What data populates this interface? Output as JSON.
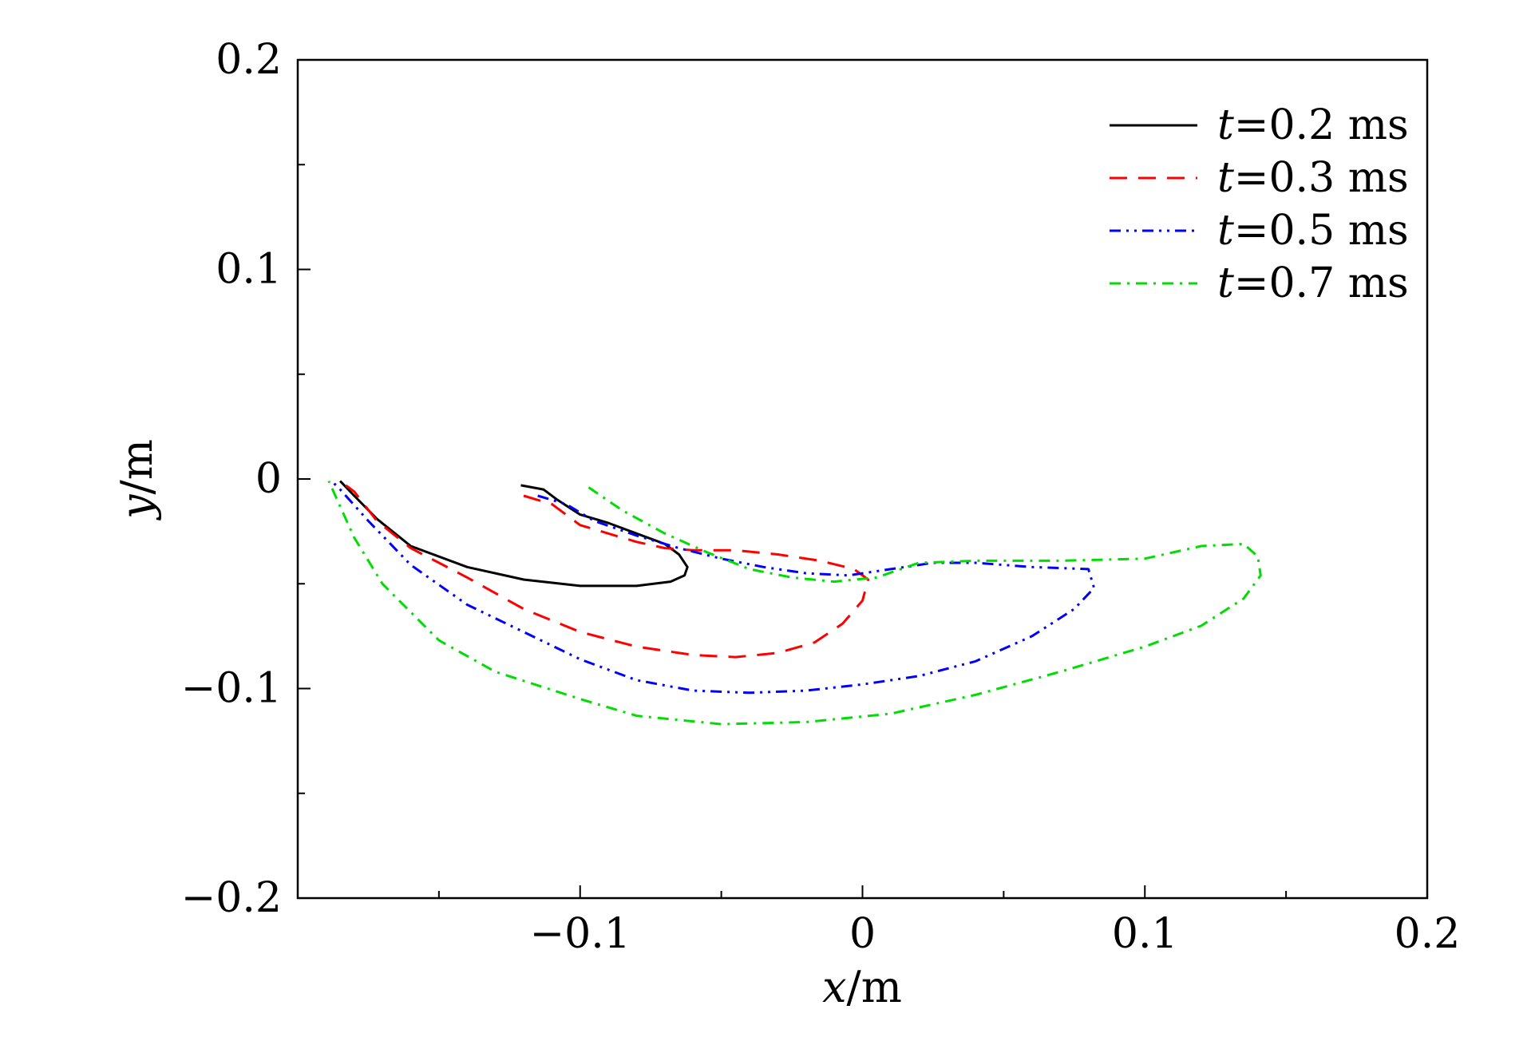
{
  "chart_data": {
    "type": "line",
    "title": "",
    "xlabel": {
      "var": "x",
      "unit": "/m"
    },
    "ylabel": {
      "var": "y",
      "unit": "/m"
    },
    "xlim": [
      -0.2,
      0.2
    ],
    "ylim": [
      -0.2,
      0.2
    ],
    "xticks": [
      {
        "value": -0.1,
        "label": "−0.1"
      },
      {
        "value": 0,
        "label": "0"
      },
      {
        "value": 0.1,
        "label": "0.1"
      },
      {
        "value": 0.2,
        "label": "0.2"
      }
    ],
    "yticks": [
      {
        "value": 0.2,
        "label": "0.2"
      },
      {
        "value": 0.1,
        "label": "0.1"
      },
      {
        "value": 0,
        "label": "0"
      },
      {
        "value": -0.1,
        "label": "−0.1"
      },
      {
        "value": -0.2,
        "label": "−0.2"
      }
    ],
    "x_minor_ticks": [
      -0.15,
      -0.05,
      0.05,
      0.15
    ],
    "y_minor_ticks": [
      0.15,
      0.05,
      -0.05,
      -0.15
    ],
    "grid": false,
    "legend_position": "top-right",
    "series": [
      {
        "name": "t=0.2 ms",
        "legend": {
          "var": "t",
          "text": "=0.2 ms"
        },
        "color": "#000000",
        "dash": "solid",
        "points": [
          [
            -0.121,
            -0.003
          ],
          [
            -0.113,
            -0.005
          ],
          [
            -0.108,
            -0.01
          ],
          [
            -0.1,
            -0.017
          ],
          [
            -0.09,
            -0.021
          ],
          [
            -0.08,
            -0.026
          ],
          [
            -0.07,
            -0.031
          ],
          [
            -0.065,
            -0.036
          ],
          [
            -0.062,
            -0.042
          ],
          [
            -0.063,
            -0.046
          ],
          [
            -0.068,
            -0.049
          ],
          [
            -0.08,
            -0.051
          ],
          [
            -0.1,
            -0.051
          ],
          [
            -0.12,
            -0.048
          ],
          [
            -0.14,
            -0.042
          ],
          [
            -0.16,
            -0.032
          ],
          [
            -0.172,
            -0.019
          ],
          [
            -0.18,
            -0.008
          ],
          [
            -0.185,
            -0.001
          ]
        ]
      },
      {
        "name": "t=0.3 ms",
        "legend": {
          "var": "t",
          "text": "=0.3 ms"
        },
        "color": "#ff0000",
        "dash": "dashed",
        "points": [
          [
            -0.12,
            -0.008
          ],
          [
            -0.11,
            -0.012
          ],
          [
            -0.1,
            -0.022
          ],
          [
            -0.09,
            -0.026
          ],
          [
            -0.08,
            -0.03
          ],
          [
            -0.07,
            -0.033
          ],
          [
            -0.06,
            -0.034
          ],
          [
            -0.045,
            -0.034
          ],
          [
            -0.03,
            -0.036
          ],
          [
            -0.015,
            -0.039
          ],
          [
            -0.003,
            -0.043
          ],
          [
            0.002,
            -0.048
          ],
          [
            0.0,
            -0.058
          ],
          [
            -0.007,
            -0.069
          ],
          [
            -0.017,
            -0.078
          ],
          [
            -0.03,
            -0.083
          ],
          [
            -0.045,
            -0.085
          ],
          [
            -0.06,
            -0.084
          ],
          [
            -0.08,
            -0.08
          ],
          [
            -0.1,
            -0.073
          ],
          [
            -0.12,
            -0.062
          ],
          [
            -0.14,
            -0.047
          ],
          [
            -0.16,
            -0.033
          ],
          [
            -0.172,
            -0.02
          ],
          [
            -0.18,
            -0.006
          ],
          [
            -0.185,
            -0.001
          ]
        ]
      },
      {
        "name": "t=0.5 ms",
        "legend": {
          "var": "t",
          "text": "=0.5 ms"
        },
        "color": "#0000ff",
        "dash": "dashdotdot",
        "points": [
          [
            -0.115,
            -0.008
          ],
          [
            -0.105,
            -0.012
          ],
          [
            -0.095,
            -0.02
          ],
          [
            -0.08,
            -0.027
          ],
          [
            -0.065,
            -0.033
          ],
          [
            -0.05,
            -0.038
          ],
          [
            -0.035,
            -0.042
          ],
          [
            -0.02,
            -0.045
          ],
          [
            -0.005,
            -0.046
          ],
          [
            0.01,
            -0.043
          ],
          [
            0.025,
            -0.04
          ],
          [
            0.04,
            -0.04
          ],
          [
            0.06,
            -0.042
          ],
          [
            0.08,
            -0.043
          ],
          [
            0.082,
            -0.052
          ],
          [
            0.075,
            -0.062
          ],
          [
            0.06,
            -0.075
          ],
          [
            0.04,
            -0.087
          ],
          [
            0.02,
            -0.094
          ],
          [
            0.0,
            -0.098
          ],
          [
            -0.02,
            -0.101
          ],
          [
            -0.04,
            -0.102
          ],
          [
            -0.06,
            -0.101
          ],
          [
            -0.08,
            -0.096
          ],
          [
            -0.1,
            -0.086
          ],
          [
            -0.12,
            -0.073
          ],
          [
            -0.14,
            -0.06
          ],
          [
            -0.16,
            -0.041
          ],
          [
            -0.175,
            -0.02
          ],
          [
            -0.185,
            -0.005
          ],
          [
            -0.188,
            -0.001
          ]
        ]
      },
      {
        "name": "t=0.7 ms",
        "legend": {
          "var": "t",
          "text": "=0.7 ms"
        },
        "color": "#00dd00",
        "dash": "dashdot",
        "points": [
          [
            -0.097,
            -0.004
          ],
          [
            -0.085,
            -0.015
          ],
          [
            -0.07,
            -0.026
          ],
          [
            -0.055,
            -0.035
          ],
          [
            -0.04,
            -0.043
          ],
          [
            -0.025,
            -0.047
          ],
          [
            -0.01,
            -0.049
          ],
          [
            0.005,
            -0.047
          ],
          [
            0.02,
            -0.04
          ],
          [
            0.04,
            -0.039
          ],
          [
            0.07,
            -0.039
          ],
          [
            0.1,
            -0.038
          ],
          [
            0.12,
            -0.032
          ],
          [
            0.135,
            -0.031
          ],
          [
            0.14,
            -0.037
          ],
          [
            0.141,
            -0.046
          ],
          [
            0.135,
            -0.057
          ],
          [
            0.12,
            -0.07
          ],
          [
            0.1,
            -0.08
          ],
          [
            0.07,
            -0.092
          ],
          [
            0.04,
            -0.103
          ],
          [
            0.01,
            -0.112
          ],
          [
            -0.02,
            -0.116
          ],
          [
            -0.05,
            -0.117
          ],
          [
            -0.08,
            -0.113
          ],
          [
            -0.1,
            -0.105
          ],
          [
            -0.13,
            -0.092
          ],
          [
            -0.15,
            -0.077
          ],
          [
            -0.17,
            -0.05
          ],
          [
            -0.18,
            -0.028
          ],
          [
            -0.186,
            -0.01
          ],
          [
            -0.189,
            -0.001
          ]
        ]
      }
    ]
  }
}
